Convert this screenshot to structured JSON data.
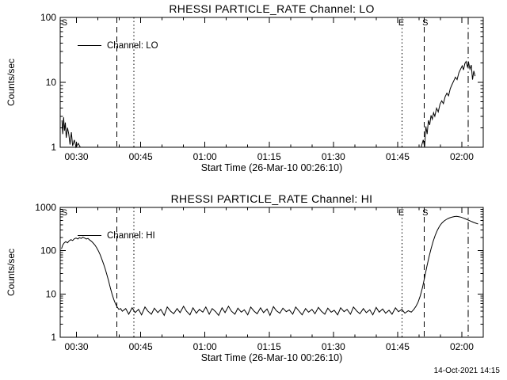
{
  "page": {
    "timestamp": "14-Oct-2021 14:15"
  },
  "colors": {
    "foreground": "#000000",
    "background": "#ffffff"
  },
  "chart_data": [
    {
      "type": "line",
      "title": "RHESSI PARTICLE_RATE Channel: LO",
      "xlabel": "Start Time (26-Mar-10 00:26:10)",
      "ylabel": "Counts/sec",
      "yscale": "log",
      "ylim": [
        1,
        100
      ],
      "xlim_minutes": [
        26.2,
        125
      ],
      "xminor_step": 5,
      "grid": false,
      "legend": {
        "label": "Channel: LO",
        "position": "upper-left-inside"
      },
      "xticks": [
        {
          "v": 30,
          "label": "00:30"
        },
        {
          "v": 45,
          "label": "00:45"
        },
        {
          "v": 60,
          "label": "01:00"
        },
        {
          "v": 75,
          "label": "01:15"
        },
        {
          "v": 90,
          "label": "01:30"
        },
        {
          "v": 105,
          "label": "01:45"
        },
        {
          "v": 120,
          "label": "02:00"
        }
      ],
      "event_lines": [
        {
          "x": 39.4,
          "style": "dashed"
        },
        {
          "x": 43.4,
          "style": "dotted"
        },
        {
          "x": 106.0,
          "style": "dotted"
        },
        {
          "x": 111.2,
          "style": "dashed"
        },
        {
          "x": 121.5,
          "style": "dashdot"
        }
      ],
      "annotations": [
        {
          "x": 26.35,
          "label": "S"
        },
        {
          "x": 105.0,
          "label": "E"
        },
        {
          "x": 110.6,
          "label": "S"
        }
      ],
      "series": [
        {
          "name": "Channel: LO",
          "points": [
            [
              26.6,
              2.6
            ],
            [
              26.8,
              1.6
            ],
            [
              27.0,
              2.9
            ],
            [
              27.2,
              1.8
            ],
            [
              27.4,
              2.4
            ],
            [
              27.6,
              1.4
            ],
            [
              27.9,
              2.0
            ],
            [
              28.2,
              1.6
            ],
            [
              28.5,
              1.1
            ],
            [
              28.8,
              1.7
            ],
            [
              29.1,
              1.05
            ],
            [
              29.5,
              1.3
            ],
            [
              29.9,
              1.0
            ],
            [
              30.4,
              1.15
            ],
            [
              30.9,
              1.0
            ],
            [
              32,
              1.0
            ],
            [
              45,
              1.0
            ],
            [
              60,
              1.0
            ],
            [
              75,
              1.0
            ],
            [
              90,
              1.0
            ],
            [
              105,
              1.0
            ],
            [
              109.5,
              1.0
            ],
            [
              110.5,
              1.0
            ],
            [
              111.0,
              1.3
            ],
            [
              111.3,
              1.0
            ],
            [
              111.6,
              2.1
            ],
            [
              111.9,
              1.6
            ],
            [
              112.2,
              2.6
            ],
            [
              112.5,
              2.2
            ],
            [
              112.8,
              3.1
            ],
            [
              113.1,
              2.7
            ],
            [
              113.4,
              3.4
            ],
            [
              113.7,
              3.0
            ],
            [
              114.1,
              4.0
            ],
            [
              114.5,
              3.5
            ],
            [
              114.9,
              4.6
            ],
            [
              115.3,
              5.2
            ],
            [
              115.7,
              4.7
            ],
            [
              116.1,
              6.0
            ],
            [
              116.5,
              6.8
            ],
            [
              116.9,
              6.2
            ],
            [
              117.3,
              8.0
            ],
            [
              117.7,
              9.2
            ],
            [
              118.1,
              10.5
            ],
            [
              118.5,
              12.0
            ],
            [
              118.9,
              11.0
            ],
            [
              119.3,
              14.0
            ],
            [
              119.7,
              16.0
            ],
            [
              120.1,
              18.0
            ],
            [
              120.4,
              15.5
            ],
            [
              120.7,
              19.5
            ],
            [
              121.0,
              21.0
            ],
            [
              121.3,
              17.5
            ],
            [
              121.6,
              20.0
            ],
            [
              121.9,
              16.0
            ],
            [
              122.2,
              18.5
            ],
            [
              122.5,
              11.0
            ],
            [
              122.8,
              15.0
            ],
            [
              123.1,
              12.5
            ]
          ]
        }
      ]
    },
    {
      "type": "line",
      "title": "RHESSI PARTICLE_RATE Channel: HI",
      "xlabel": "Start Time (26-Mar-10 00:26:10)",
      "ylabel": "Counts/sec",
      "yscale": "log",
      "ylim": [
        1,
        1000
      ],
      "xlim_minutes": [
        26.2,
        125
      ],
      "xminor_step": 5,
      "grid": false,
      "legend": {
        "label": "Channel: HI",
        "position": "upper-left-inside"
      },
      "xticks": [
        {
          "v": 30,
          "label": "00:30"
        },
        {
          "v": 45,
          "label": "00:45"
        },
        {
          "v": 60,
          "label": "01:00"
        },
        {
          "v": 75,
          "label": "01:15"
        },
        {
          "v": 90,
          "label": "01:30"
        },
        {
          "v": 105,
          "label": "01:45"
        },
        {
          "v": 120,
          "label": "02:00"
        }
      ],
      "event_lines": [
        {
          "x": 39.4,
          "style": "dashed"
        },
        {
          "x": 43.4,
          "style": "dotted"
        },
        {
          "x": 106.0,
          "style": "dotted"
        },
        {
          "x": 111.2,
          "style": "dashed"
        },
        {
          "x": 121.5,
          "style": "dashdot"
        }
      ],
      "annotations": [
        {
          "x": 26.35,
          "label": "S"
        },
        {
          "x": 105.0,
          "label": "E"
        },
        {
          "x": 110.6,
          "label": "S"
        }
      ],
      "series": [
        {
          "name": "Channel: HI",
          "points": [
            [
              26.5,
              110
            ],
            [
              26.8,
              135
            ],
            [
              27.1,
              150
            ],
            [
              27.5,
              162
            ],
            [
              27.9,
              152
            ],
            [
              28.3,
              170
            ],
            [
              28.7,
              180
            ],
            [
              29.1,
              172
            ],
            [
              29.5,
              188
            ],
            [
              29.9,
              196
            ],
            [
              30.3,
              186
            ],
            [
              30.7,
              200
            ],
            [
              31.1,
              192
            ],
            [
              31.5,
              205
            ],
            [
              31.9,
              196
            ],
            [
              32.3,
              186
            ],
            [
              32.7,
              192
            ],
            [
              33.1,
              176
            ],
            [
              33.5,
              165
            ],
            [
              33.9,
              150
            ],
            [
              34.3,
              135
            ],
            [
              34.7,
              118
            ],
            [
              35.1,
              100
            ],
            [
              35.5,
              82
            ],
            [
              35.9,
              65
            ],
            [
              36.3,
              50
            ],
            [
              36.7,
              38
            ],
            [
              37.1,
              28
            ],
            [
              37.5,
              20
            ],
            [
              37.9,
              14
            ],
            [
              38.3,
              10
            ],
            [
              38.7,
              7.5
            ],
            [
              39.1,
              6.0
            ],
            [
              39.5,
              5.0
            ],
            [
              39.9,
              4.4
            ],
            [
              40.3,
              4.6
            ],
            [
              40.7,
              4.0
            ],
            [
              41.5,
              4.6
            ],
            [
              42.2,
              3.4
            ],
            [
              43.0,
              4.8
            ],
            [
              43.7,
              3.7
            ],
            [
              44.5,
              4.4
            ],
            [
              45.2,
              3.3
            ],
            [
              46.0,
              5.0
            ],
            [
              46.7,
              4.0
            ],
            [
              47.5,
              3.4
            ],
            [
              48.2,
              4.7
            ],
            [
              49.0,
              3.7
            ],
            [
              49.7,
              4.4
            ],
            [
              50.5,
              3.2
            ],
            [
              51.2,
              5.0
            ],
            [
              52.0,
              4.0
            ],
            [
              52.7,
              3.5
            ],
            [
              53.5,
              4.6
            ],
            [
              54.2,
              3.7
            ],
            [
              55.0,
              5.2
            ],
            [
              55.7,
              4.0
            ],
            [
              56.5,
              3.3
            ],
            [
              57.2,
              4.8
            ],
            [
              58.0,
              3.6
            ],
            [
              58.7,
              4.4
            ],
            [
              59.5,
              3.8
            ],
            [
              60.2,
              5.0
            ],
            [
              61.0,
              3.4
            ],
            [
              61.7,
              4.6
            ],
            [
              62.5,
              3.9
            ],
            [
              63.2,
              3.2
            ],
            [
              64.0,
              4.8
            ],
            [
              64.7,
              3.7
            ],
            [
              65.5,
              5.2
            ],
            [
              66.2,
              4.0
            ],
            [
              67.0,
              3.4
            ],
            [
              67.7,
              4.7
            ],
            [
              68.5,
              3.8
            ],
            [
              69.2,
              4.3
            ],
            [
              70.0,
              3.3
            ],
            [
              70.7,
              5.0
            ],
            [
              71.5,
              4.0
            ],
            [
              72.2,
              3.5
            ],
            [
              73.0,
              4.8
            ],
            [
              73.7,
              3.7
            ],
            [
              74.5,
              4.5
            ],
            [
              75.2,
              3.2
            ],
            [
              76.0,
              5.1
            ],
            [
              76.7,
              4.1
            ],
            [
              77.5,
              3.6
            ],
            [
              78.2,
              4.7
            ],
            [
              79.0,
              3.9
            ],
            [
              79.7,
              4.3
            ],
            [
              80.5,
              3.4
            ],
            [
              81.2,
              5.0
            ],
            [
              82.0,
              4.0
            ],
            [
              82.7,
              3.3
            ],
            [
              83.5,
              4.6
            ],
            [
              84.2,
              3.8
            ],
            [
              85.0,
              4.4
            ],
            [
              85.7,
              3.5
            ],
            [
              86.5,
              4.9
            ],
            [
              87.2,
              4.0
            ],
            [
              88.0,
              3.4
            ],
            [
              88.7,
              4.7
            ],
            [
              89.5,
              3.8
            ],
            [
              90.2,
              4.2
            ],
            [
              91.0,
              3.3
            ],
            [
              91.7,
              4.8
            ],
            [
              92.5,
              3.9
            ],
            [
              93.2,
              4.4
            ],
            [
              94.0,
              3.4
            ],
            [
              94.7,
              5.0
            ],
            [
              95.5,
              4.0
            ],
            [
              96.2,
              3.5
            ],
            [
              97.0,
              4.6
            ],
            [
              97.7,
              3.7
            ],
            [
              98.5,
              4.3
            ],
            [
              99.2,
              3.3
            ],
            [
              100.0,
              4.9
            ],
            [
              100.7,
              3.8
            ],
            [
              101.5,
              4.5
            ],
            [
              102.2,
              3.6
            ],
            [
              103.0,
              4.2
            ],
            [
              103.7,
              3.4
            ],
            [
              104.5,
              4.8
            ],
            [
              105.2,
              3.9
            ],
            [
              106.0,
              4.4
            ],
            [
              106.7,
              3.6
            ],
            [
              107.5,
              4.1
            ],
            [
              108.2,
              3.8
            ],
            [
              108.8,
              4.4
            ],
            [
              109.3,
              5.2
            ],
            [
              109.8,
              6.5
            ],
            [
              110.3,
              9
            ],
            [
              110.8,
              14
            ],
            [
              111.3,
              24
            ],
            [
              111.8,
              42
            ],
            [
              112.3,
              70
            ],
            [
              112.8,
              110
            ],
            [
              113.3,
              165
            ],
            [
              113.8,
              230
            ],
            [
              114.3,
              300
            ],
            [
              114.8,
              370
            ],
            [
              115.3,
              430
            ],
            [
              115.8,
              480
            ],
            [
              116.3,
              520
            ],
            [
              116.8,
              555
            ],
            [
              117.3,
              580
            ],
            [
              117.8,
              600
            ],
            [
              118.3,
              615
            ],
            [
              118.8,
              620
            ],
            [
              119.3,
              612
            ],
            [
              119.8,
              595
            ],
            [
              120.3,
              570
            ],
            [
              120.8,
              545
            ],
            [
              121.3,
              520
            ],
            [
              121.8,
              495
            ],
            [
              122.3,
              470
            ],
            [
              122.8,
              450
            ],
            [
              123.3,
              430
            ],
            [
              123.8,
              415
            ]
          ]
        }
      ]
    }
  ]
}
